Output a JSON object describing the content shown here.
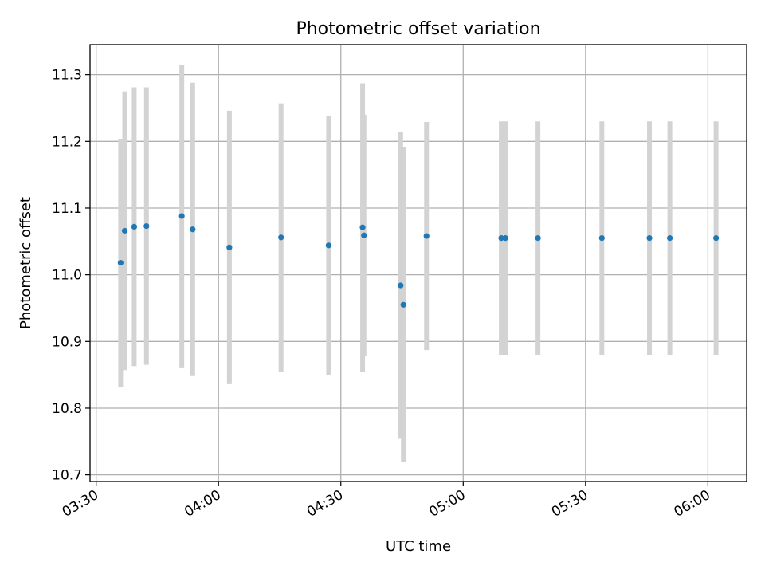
{
  "chart_data": {
    "type": "scatter",
    "title": "Photometric offset variation",
    "xlabel": "UTC time",
    "ylabel": "Photometric offset",
    "grid": true,
    "xlim": [
      "03:28:30",
      "06:09:30"
    ],
    "ylim": [
      10.69,
      11.345
    ],
    "xticks": [
      "03:30",
      "04:00",
      "04:30",
      "05:00",
      "05:30",
      "06:00"
    ],
    "yticks": [
      10.7,
      10.8,
      10.9,
      11.0,
      11.1,
      11.2,
      11.3
    ],
    "colors": {
      "points": "#1f77b4",
      "errorbars": "#d3d3d3"
    },
    "points": [
      {
        "x": "03:36:00",
        "y": 11.018,
        "err": 0.186
      },
      {
        "x": "03:37:00",
        "y": 11.066,
        "err": 0.209
      },
      {
        "x": "03:39:20",
        "y": 11.072,
        "err": 0.209
      },
      {
        "x": "03:42:20",
        "y": 11.073,
        "err": 0.208
      },
      {
        "x": "03:51:00",
        "y": 11.088,
        "err": 0.227
      },
      {
        "x": "03:53:40",
        "y": 11.068,
        "err": 0.22
      },
      {
        "x": "04:02:40",
        "y": 11.041,
        "err": 0.205
      },
      {
        "x": "04:15:20",
        "y": 11.056,
        "err": 0.201
      },
      {
        "x": "04:27:00",
        "y": 11.044,
        "err": 0.194
      },
      {
        "x": "04:35:20",
        "y": 11.071,
        "err": 0.216
      },
      {
        "x": "04:35:40",
        "y": 11.059,
        "err": 0.181
      },
      {
        "x": "04:44:40",
        "y": 10.984,
        "err": 0.23
      },
      {
        "x": "04:45:20",
        "y": 10.955,
        "err": 0.236
      },
      {
        "x": "04:51:00",
        "y": 11.058,
        "err": 0.171
      },
      {
        "x": "05:09:20",
        "y": 11.055,
        "err": 0.175
      },
      {
        "x": "05:10:20",
        "y": 11.055,
        "err": 0.175
      },
      {
        "x": "05:18:20",
        "y": 11.055,
        "err": 0.175
      },
      {
        "x": "05:34:00",
        "y": 11.055,
        "err": 0.175
      },
      {
        "x": "05:45:40",
        "y": 11.055,
        "err": 0.175
      },
      {
        "x": "05:50:40",
        "y": 11.055,
        "err": 0.175
      },
      {
        "x": "06:02:00",
        "y": 11.055,
        "err": 0.175
      }
    ]
  }
}
